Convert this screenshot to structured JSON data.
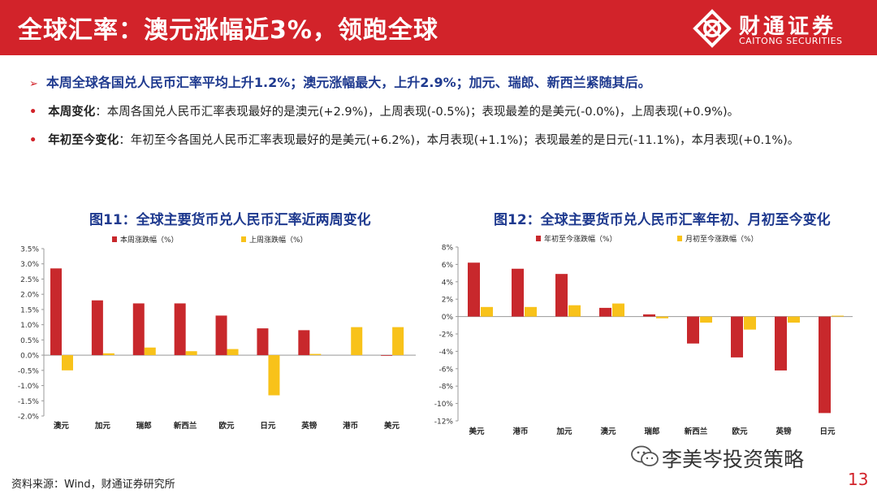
{
  "header": {
    "title": "全球汇率：澳元涨幅近3%，领跑全球",
    "logo_cn": "财通证券",
    "logo_en": "CAITONG SECURITIES"
  },
  "bullets": {
    "marker": "➢",
    "main": "本周全球各国兑人民币汇率平均上升1.2%；澳元涨幅最大，上升2.9%；加元、瑞郎、新西兰紧随其后。",
    "dot": "•",
    "items": [
      {
        "lead": "本周变化",
        "text": "：本周各国兑人民币汇率表现最好的是澳元(+2.9%)，上周表现(-0.5%)；表现最差的是美元(-0.0%)，上周表现(+0.9%)。"
      },
      {
        "lead": "年初至今变化",
        "text": "：年初至今各国兑人民币汇率表现最好的是美元(+6.2%)，本月表现(+1.1%)；表现最差的是日元(-11.1%)，本月表现(+0.1%)。"
      }
    ]
  },
  "colors": {
    "red": "#c8282c",
    "yellow": "#f8c21a",
    "brand": "#d2232a",
    "title_blue": "#1f3a8f"
  },
  "chart_data": [
    {
      "type": "bar",
      "title": "图11：全球主要货币兑人民币汇率近两周变化",
      "categories": [
        "澳元",
        "加元",
        "瑞郎",
        "新西兰",
        "欧元",
        "日元",
        "英镑",
        "港币",
        "美元"
      ],
      "series": [
        {
          "name": "本周涨跌幅（%）",
          "color": "#c8282c",
          "values": [
            2.85,
            1.8,
            1.7,
            1.7,
            1.3,
            0.88,
            0.82,
            0.0,
            -0.02
          ]
        },
        {
          "name": "上周涨跌幅（%）",
          "color": "#f8c21a",
          "values": [
            -0.5,
            0.06,
            0.25,
            0.13,
            0.2,
            -1.32,
            0.04,
            0.92,
            0.92
          ]
        }
      ],
      "ylim": [
        -2.0,
        3.5
      ],
      "yticks": [
        "3.5%",
        "3.0%",
        "2.5%",
        "2.0%",
        "1.5%",
        "1.0%",
        "0.5%",
        "0.0%",
        "-0.5%",
        "-1.0%",
        "-1.5%",
        "-2.0%"
      ],
      "legend": "top"
    },
    {
      "type": "bar",
      "title": "图12：全球主要货币兑人民币汇率年初、月初至今变化",
      "categories": [
        "美元",
        "港币",
        "加元",
        "澳元",
        "瑞郎",
        "新西兰",
        "欧元",
        "英镑",
        "日元"
      ],
      "series": [
        {
          "name": "年初至今涨跌幅（%）",
          "color": "#c8282c",
          "values": [
            6.2,
            5.5,
            4.9,
            1.0,
            0.25,
            -3.1,
            -4.7,
            -6.2,
            -11.1
          ]
        },
        {
          "name": "月初至今涨跌幅（%）",
          "color": "#f8c21a",
          "values": [
            1.1,
            1.1,
            1.3,
            1.5,
            -0.2,
            -0.7,
            -1.5,
            -0.7,
            0.1
          ]
        }
      ],
      "ylim": [
        -12,
        8
      ],
      "yticks": [
        "8%",
        "6%",
        "4%",
        "2%",
        "0%",
        "-2%",
        "-4%",
        "-6%",
        "-8%",
        "-10%",
        "-12%"
      ],
      "legend": "top"
    }
  ],
  "footer": {
    "source": "资料来源：Wind，财通证券研究所",
    "watermark": "李美岑投资策略",
    "page": "13"
  }
}
